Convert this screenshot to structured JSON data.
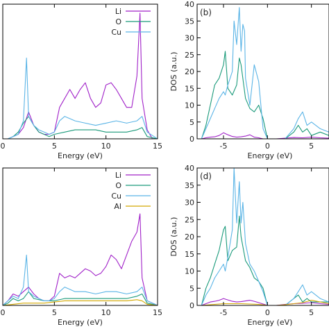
{
  "colors": {
    "Li": "#a020c8",
    "O": "#1a9a7a",
    "Cu": "#5ab4e6",
    "Al": "#d4a800"
  },
  "chart_data": [
    {
      "type": "line",
      "panel_label": "",
      "xlabel": "Energy (eV)",
      "ylabel": "",
      "xlim": [
        0,
        15
      ],
      "ylim": [
        0,
        60
      ],
      "xticks": [
        "0",
        "5",
        "10",
        "15"
      ],
      "yticks": [],
      "legend_position": "top-right",
      "series": [
        {
          "name": "Li",
          "color": "#a020c8",
          "x": [
            0,
            0.5,
            1,
            1.5,
            2,
            2.5,
            3,
            3.5,
            4,
            4.5,
            5,
            5.5,
            6,
            6.5,
            7,
            7.5,
            8,
            8.5,
            9,
            9.5,
            10,
            10.5,
            11,
            11.5,
            12,
            12.5,
            13,
            13.3,
            13.5,
            14,
            14.5,
            15
          ],
          "y": [
            0,
            0,
            1,
            2,
            5,
            12,
            6,
            3,
            2,
            2,
            3,
            14,
            18,
            22,
            18,
            22,
            25,
            18,
            14,
            16,
            24,
            25,
            22,
            18,
            14,
            14,
            28,
            56,
            18,
            4,
            0,
            0
          ]
        },
        {
          "name": "O",
          "color": "#1a9a7a",
          "x": [
            0,
            0.5,
            1,
            1.5,
            2,
            2.5,
            3,
            3.5,
            4,
            4.5,
            5,
            6,
            7,
            8,
            9,
            10,
            11,
            12,
            13,
            13.5,
            14,
            15
          ],
          "y": [
            0,
            0,
            1,
            3,
            7,
            10,
            6,
            3,
            2,
            1,
            2,
            3,
            4,
            4,
            4,
            3,
            3,
            3,
            4,
            5,
            1,
            0
          ]
        },
        {
          "name": "Cu",
          "color": "#5ab4e6",
          "x": [
            0,
            0.5,
            1,
            1.5,
            2,
            2.3,
            2.5,
            3,
            3.5,
            4,
            4.5,
            5,
            5.5,
            6,
            6.5,
            7,
            8,
            9,
            10,
            11,
            12,
            13,
            13.5,
            14,
            15
          ],
          "y": [
            0,
            0,
            1,
            2,
            8,
            36,
            10,
            6,
            4,
            3,
            2,
            3,
            8,
            10,
            9,
            8,
            7,
            6,
            7,
            8,
            7,
            8,
            10,
            3,
            0
          ]
        }
      ]
    },
    {
      "type": "line",
      "panel_label": "(b)",
      "xlabel": "Energy (eV)",
      "ylabel": "DOS (a.u.)",
      "xlim": [
        -8,
        7
      ],
      "ylim": [
        0,
        40
      ],
      "xticks": [
        "-5",
        "0",
        "5"
      ],
      "yticks": [
        "0",
        "5",
        "10",
        "15",
        "20",
        "25",
        "30",
        "35",
        "40"
      ],
      "series": [
        {
          "name": "Li",
          "color": "#a020c8",
          "x": [
            -7.5,
            -7,
            -6.5,
            -6,
            -5.5,
            -5,
            -4.5,
            -4,
            -3.5,
            -3,
            -2.5,
            -2,
            -1.5,
            -1,
            -0.5,
            0,
            0.5,
            1,
            2,
            3,
            4,
            5,
            6,
            7
          ],
          "y": [
            0,
            0.3,
            0.5,
            0.6,
            1,
            1.8,
            1.2,
            0.7,
            0.5,
            0.6,
            0.8,
            1.2,
            0.5,
            0.3,
            0,
            0,
            0,
            0,
            0.2,
            0.4,
            0.3,
            0.5,
            0.3,
            0.2
          ]
        },
        {
          "name": "O",
          "color": "#1a9a7a",
          "x": [
            -7.5,
            -7,
            -6.5,
            -6,
            -5.5,
            -5,
            -4.8,
            -4.5,
            -4,
            -3.5,
            -3.2,
            -3,
            -2.5,
            -2,
            -1.5,
            -1,
            -0.5,
            0,
            0.5,
            1,
            1.5,
            2,
            3,
            3.5,
            4,
            4.5,
            5,
            6,
            7
          ],
          "y": [
            0,
            4,
            10,
            16,
            18,
            22,
            26,
            15,
            13,
            16,
            24,
            22,
            12,
            9,
            8,
            10,
            6,
            0,
            0,
            0,
            0,
            0,
            2,
            4,
            2,
            3,
            1,
            2,
            1
          ]
        },
        {
          "name": "Cu",
          "color": "#5ab4e6",
          "x": [
            -7.5,
            -7,
            -6.5,
            -6,
            -5.5,
            -5,
            -4.8,
            -4.5,
            -4,
            -3.8,
            -3.5,
            -3.2,
            -3,
            -2.8,
            -2.6,
            -2.5,
            -2,
            -1.5,
            -1,
            -0.5,
            0,
            0.5,
            1,
            1.5,
            2,
            3,
            3.5,
            4,
            4.5,
            5,
            6,
            7
          ],
          "y": [
            0,
            3,
            6,
            9,
            12,
            14,
            13,
            16,
            20,
            35,
            28,
            39,
            26,
            34,
            32,
            18,
            10,
            22,
            17,
            3,
            0,
            0,
            0,
            0,
            0,
            3,
            6,
            8,
            4,
            5,
            3,
            2
          ]
        }
      ]
    },
    {
      "type": "line",
      "panel_label": "",
      "xlabel": "Energy (eV)",
      "ylabel": "",
      "xlim": [
        0,
        15
      ],
      "ylim": [
        0,
        60
      ],
      "xticks": [
        "0",
        "5",
        "10",
        "15"
      ],
      "yticks": [],
      "legend_position": "top-right",
      "series": [
        {
          "name": "Li",
          "color": "#a020c8",
          "x": [
            0,
            0.5,
            1,
            1.5,
            2,
            2.5,
            3,
            3.5,
            4,
            4.5,
            5,
            5.5,
            6,
            6.5,
            7,
            7.5,
            8,
            8.5,
            9,
            9.5,
            10,
            10.5,
            11,
            11.5,
            12,
            12.5,
            13,
            13.3,
            13.5,
            14,
            15
          ],
          "y": [
            0,
            2,
            5,
            4,
            6,
            8,
            5,
            3,
            2,
            2,
            4,
            14,
            12,
            13,
            12,
            14,
            16,
            15,
            13,
            14,
            17,
            22,
            20,
            16,
            22,
            28,
            32,
            40,
            12,
            2,
            0
          ]
        },
        {
          "name": "O",
          "color": "#1a9a7a",
          "x": [
            0,
            0.5,
            1,
            1.5,
            2,
            2.5,
            3,
            4,
            5,
            6,
            7,
            8,
            9,
            10,
            11,
            12,
            13,
            13.5,
            14,
            15
          ],
          "y": [
            0,
            1,
            3,
            2,
            3,
            6,
            3,
            2,
            2,
            3,
            3,
            3,
            3,
            3,
            3,
            3,
            4,
            5,
            1,
            0
          ]
        },
        {
          "name": "Cu",
          "color": "#5ab4e6",
          "x": [
            0,
            0.5,
            1,
            1.5,
            2,
            2.3,
            2.5,
            3,
            3.5,
            4,
            4.5,
            5,
            5.5,
            6,
            6.5,
            7,
            8,
            9,
            10,
            11,
            12,
            13,
            13.5,
            14,
            15
          ],
          "y": [
            0,
            2,
            4,
            3,
            8,
            22,
            6,
            4,
            3,
            2,
            2,
            3,
            6,
            8,
            7,
            6,
            6,
            5,
            6,
            6,
            5,
            6,
            8,
            2,
            0
          ]
        },
        {
          "name": "Al",
          "color": "#d4a800",
          "x": [
            0,
            1,
            2,
            3,
            4,
            5,
            6,
            7,
            8,
            9,
            10,
            11,
            12,
            13,
            13.5,
            14,
            15
          ],
          "y": [
            0,
            0.5,
            1,
            1,
            1,
            1.5,
            2,
            2,
            2,
            2,
            2,
            2,
            2,
            2.5,
            2,
            0.5,
            0
          ]
        }
      ]
    },
    {
      "type": "line",
      "panel_label": "(d)",
      "xlabel": "Energy (eV)",
      "ylabel": "DOS (a.u.)",
      "xlim": [
        -8,
        7
      ],
      "ylim": [
        0,
        40
      ],
      "xticks": [
        "-5",
        "0",
        "5"
      ],
      "yticks": [
        "0",
        "5",
        "10",
        "15",
        "20",
        "25",
        "30",
        "35",
        "40"
      ],
      "series": [
        {
          "name": "Li",
          "color": "#a020c8",
          "x": [
            -7.5,
            -7,
            -6.5,
            -6,
            -5.5,
            -5,
            -4.5,
            -4,
            -3.5,
            -3,
            -2.5,
            -2,
            -1.5,
            -1,
            -0.5,
            0,
            1,
            2,
            3,
            4,
            5,
            6,
            7
          ],
          "y": [
            0,
            0.5,
            1,
            1.2,
            1.5,
            2,
            1.6,
            1.2,
            1,
            1.1,
            1.3,
            1.5,
            1.2,
            0.8,
            0.4,
            0,
            0,
            0.3,
            0.5,
            0.6,
            0.8,
            0.5,
            0.3
          ]
        },
        {
          "name": "O",
          "color": "#1a9a7a",
          "x": [
            -7.5,
            -7,
            -6.5,
            -6,
            -5.5,
            -5,
            -4.8,
            -4.5,
            -4,
            -3.5,
            -3.2,
            -3,
            -2.5,
            -2,
            -1.5,
            -1,
            -0.5,
            0,
            1,
            2,
            3,
            3.5,
            4,
            4.5,
            5,
            6,
            7
          ],
          "y": [
            0,
            5,
            8,
            12,
            16,
            22,
            23,
            13,
            16,
            17,
            26,
            20,
            13,
            11,
            8,
            7,
            5,
            0,
            0,
            0,
            2,
            3,
            1,
            2,
            1,
            1,
            1
          ]
        },
        {
          "name": "Cu",
          "color": "#5ab4e6",
          "x": [
            -7.5,
            -7,
            -6.5,
            -6,
            -5.5,
            -5,
            -4.8,
            -4.5,
            -4,
            -3.8,
            -3.5,
            -3.2,
            -3,
            -2.8,
            -2.5,
            -2,
            -1.5,
            -1,
            -0.5,
            0,
            1,
            2,
            3,
            3.5,
            4,
            4.5,
            5,
            6,
            7
          ],
          "y": [
            0,
            3,
            5,
            8,
            10,
            12,
            10,
            14,
            22,
            40,
            24,
            36,
            24,
            30,
            18,
            12,
            10,
            7,
            4,
            0,
            0,
            0,
            2,
            4,
            6,
            3,
            4,
            2,
            1
          ]
        },
        {
          "name": "Al",
          "color": "#d4a800",
          "x": [
            -7.5,
            -6,
            -5,
            -4,
            -3,
            -2,
            -1,
            0,
            1,
            2,
            3,
            4,
            5,
            6,
            7
          ],
          "y": [
            0,
            0.3,
            0.5,
            0.5,
            0.5,
            0.4,
            0.3,
            0,
            0,
            0.2,
            0.5,
            0.8,
            1.5,
            1,
            0.5
          ]
        }
      ]
    }
  ]
}
